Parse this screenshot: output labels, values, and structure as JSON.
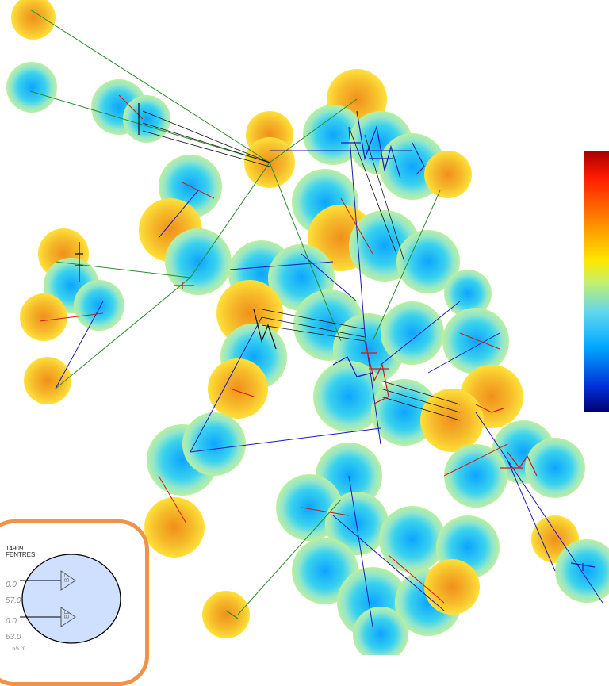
{
  "colorbar": {
    "top_color": "#a50000",
    "bottom_color": "#00006e"
  },
  "detail_box": {
    "border_color": "#f0934a",
    "fill_color": "#cfe0ff",
    "id_text": "14909",
    "label_text": "FENTRES",
    "values": [
      "0.0",
      "57.0",
      "0.0",
      "63.0",
      "55.3"
    ],
    "gate_labels": [
      "BP",
      "BP"
    ]
  },
  "legend_lines": {
    "red": "#d01818",
    "blue": "#1a1ab4",
    "black": "#111111",
    "green": "#2a8a2a"
  }
}
